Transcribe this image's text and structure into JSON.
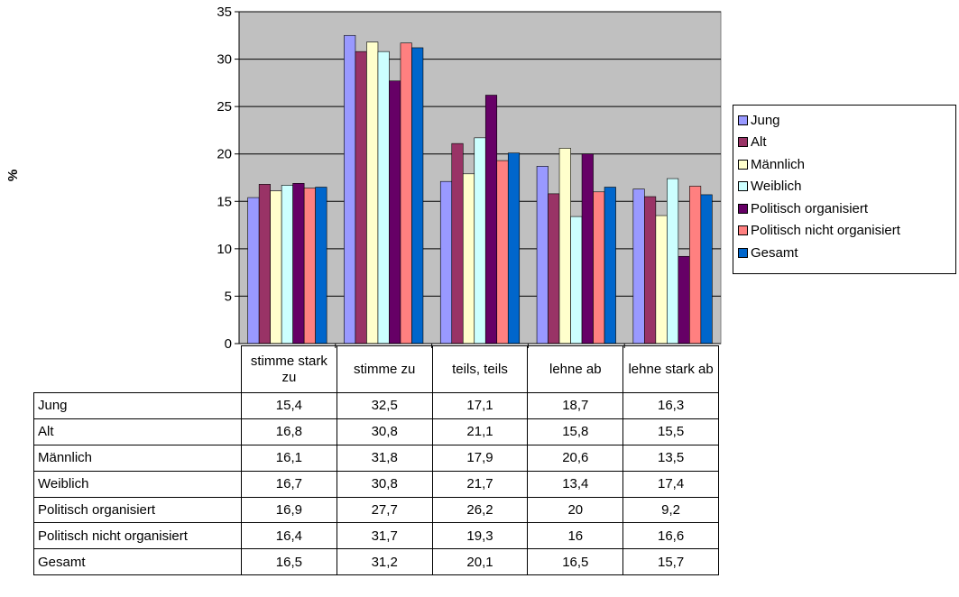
{
  "chart_data": {
    "type": "bar",
    "ylabel": "%",
    "ylim": [
      0,
      35
    ],
    "yticks": [
      0,
      5,
      10,
      15,
      20,
      25,
      30,
      35
    ],
    "grid": true,
    "legend_position": "right",
    "plot_background": "#c0c0c0",
    "categories": [
      "stimme stark zu",
      "stimme zu",
      "teils, teils",
      "lehne ab",
      "lehne stark ab"
    ],
    "series": [
      {
        "name": "Jung",
        "color": "#9999ff",
        "values": [
          15.4,
          32.5,
          17.1,
          18.7,
          16.3
        ],
        "labels": [
          "15,4",
          "32,5",
          "17,1",
          "18,7",
          "16,3"
        ]
      },
      {
        "name": "Alt",
        "color": "#993366",
        "values": [
          16.8,
          30.8,
          21.1,
          15.8,
          15.5
        ],
        "labels": [
          "16,8",
          "30,8",
          "21,1",
          "15,8",
          "15,5"
        ]
      },
      {
        "name": "Männlich",
        "color": "#ffffcc",
        "values": [
          16.1,
          31.8,
          17.9,
          20.6,
          13.5
        ],
        "labels": [
          "16,1",
          "31,8",
          "17,9",
          "20,6",
          "13,5"
        ]
      },
      {
        "name": "Weiblich",
        "color": "#ccffff",
        "values": [
          16.7,
          30.8,
          21.7,
          13.4,
          17.4
        ],
        "labels": [
          "16,7",
          "30,8",
          "21,7",
          "13,4",
          "17,4"
        ]
      },
      {
        "name": "Politisch organisiert",
        "color": "#660066",
        "values": [
          16.9,
          27.7,
          26.2,
          20,
          9.2
        ],
        "labels": [
          "16,9",
          "27,7",
          "26,2",
          "20",
          "9,2"
        ]
      },
      {
        "name": "Politisch nicht organisiert",
        "color": "#ff8080",
        "values": [
          16.4,
          31.7,
          19.3,
          16,
          16.6
        ],
        "labels": [
          "16,4",
          "31,7",
          "19,3",
          "16",
          "16,6"
        ]
      },
      {
        "name": "Gesamt",
        "color": "#0066cc",
        "values": [
          16.5,
          31.2,
          20.1,
          16.5,
          15.7
        ],
        "labels": [
          "16,5",
          "31,2",
          "20,1",
          "16,5",
          "15,7"
        ]
      }
    ]
  }
}
